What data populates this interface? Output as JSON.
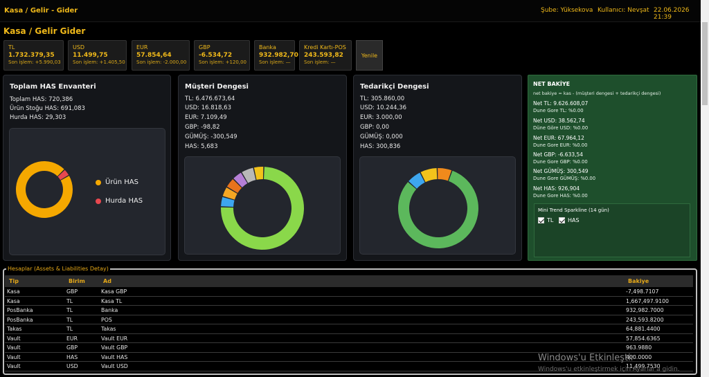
{
  "topbar": {
    "title": "Kasa / Gelir - Gider",
    "branch": "Şube: Yüksekova",
    "user": "Kullanıcı: Nevşat",
    "datetime": "22.06.2026 21:39"
  },
  "page_title": "Kasa / Gelir Gider",
  "currency_cards": [
    {
      "name": "TL",
      "value": "1.732.379,35",
      "last": "Son işlem: +5.990,03"
    },
    {
      "name": "USD",
      "value": "11.499,75",
      "last": "Son işlem: +1.405,50"
    },
    {
      "name": "EUR",
      "value": "57.854,64",
      "last": "Son işlem: -2.000,00"
    },
    {
      "name": "GBP",
      "value": "-6.534,72",
      "last": "Son işlem: +120,00"
    },
    {
      "name": "Banka",
      "value": "932.982,70",
      "last": "Son işlem: —"
    },
    {
      "name": "Kredi Kartı-POS",
      "value": "243.593,82",
      "last": "Son işlem: —"
    }
  ],
  "refresh_label": "Yenile",
  "has_panel": {
    "title": "Toplam HAS Envanteri",
    "lines": [
      "Toplam HAS: 720,386",
      "Ürün Stoğu HAS: 691,083",
      "Hurda HAS: 29,303"
    ],
    "legend": [
      {
        "label": "Ürün HAS",
        "color": "#f5a800"
      },
      {
        "label": "Hurda HAS",
        "color": "#e8484f"
      }
    ]
  },
  "customer_panel": {
    "title": "Müşteri Dengesi",
    "lines": [
      "TL: 6.476.673,64",
      "USD: 16.818,63",
      "EUR: 7.109,49",
      "GBP: -98,82",
      "GÜMÜŞ: -300,549",
      "HAS: 5,683"
    ]
  },
  "supplier_panel": {
    "title": "Tedarikçi Dengesi",
    "lines": [
      "TL: 305.860,00",
      "USD: 10.244,36",
      "EUR: 3.000,00",
      "GBP: 0,00",
      "GÜMÜŞ: 0,000",
      "HAS: 300,836"
    ]
  },
  "chart_data": [
    {
      "type": "pie",
      "labels": [
        "Ürün HAS",
        "Hurda HAS"
      ],
      "values": [
        691.083,
        29.303
      ],
      "colors": [
        "#f5a800",
        "#e8484f"
      ]
    },
    {
      "type": "pie",
      "values": [
        75,
        4,
        4,
        4,
        4,
        5,
        4
      ],
      "colors": [
        "#8ad84a",
        "#3ea6ee",
        "#f5a623",
        "#e8731c",
        "#b57fd6",
        "#b8b8b8",
        "#f2c21b"
      ]
    },
    {
      "type": "pie",
      "values": [
        81,
        6,
        7,
        6
      ],
      "colors": [
        "#5cb85c",
        "#3ea6ee",
        "#f2c21b",
        "#f08a1c"
      ]
    }
  ],
  "net_panel": {
    "title": "NET BAKİYE",
    "subtitle": "net bakiye = kas - (müşteri dengesi + tedarikçi dengesi)",
    "items": [
      {
        "value": "Net TL: 9.626.608,07",
        "compare": "Dune Gore TL: %0.00"
      },
      {
        "value": "Net USD: 38.562,74",
        "compare": "Düne Göre USD: %0.00"
      },
      {
        "value": "Net EUR: 67.964,12",
        "compare": "Dune Gore EUR: %0.00"
      },
      {
        "value": "Net GBP: -6.633,54",
        "compare": "Dune Gore GBP: %0.00"
      },
      {
        "value": "Net GÜMÜŞ: 300,549",
        "compare": "Dune Gore GÜMÜŞ: %0.00"
      },
      {
        "value": "Net HAS: 926,904",
        "compare": "Dune Gore HAS: %0.00"
      }
    ],
    "sparkline_title": "Mini Trend Sparkline (14 gün)",
    "check_tl": "TL",
    "check_has": "HAS"
  },
  "accounts": {
    "legend": "Hesaplar (Assets & Liabilities Detay)",
    "headers": {
      "type": "Tip",
      "unit": "Birim",
      "name": "Ad",
      "balance": "Bakiye"
    },
    "rows": [
      {
        "type": "Kasa",
        "unit": "GBP",
        "name": "Kasa GBP",
        "balance": "-7,498.7107"
      },
      {
        "type": "Kasa",
        "unit": "TL",
        "name": "Kasa TL",
        "balance": "1,667,497.9100"
      },
      {
        "type": "PosBanka",
        "unit": "TL",
        "name": "Banka",
        "balance": "932,982.7000"
      },
      {
        "type": "PosBanka",
        "unit": "TL",
        "name": "POS",
        "balance": "243,593.8200"
      },
      {
        "type": "Takas",
        "unit": "TL",
        "name": "Takas",
        "balance": "64,881.4400"
      },
      {
        "type": "Vault",
        "unit": "EUR",
        "name": "Vault EUR",
        "balance": "57,854.6365"
      },
      {
        "type": "Vault",
        "unit": "GBP",
        "name": "Vault GBP",
        "balance": "963.9880"
      },
      {
        "type": "Vault",
        "unit": "HAS",
        "name": "Vault HAS",
        "balance": "400.0000"
      },
      {
        "type": "Vault",
        "unit": "USD",
        "name": "Vault USD",
        "balance": "11,499.7530"
      }
    ]
  },
  "watermark": {
    "title": "Windows'u Etkinleştir",
    "text": "Windows'u etkinleştirmek için Ayarlar'a gidin."
  }
}
